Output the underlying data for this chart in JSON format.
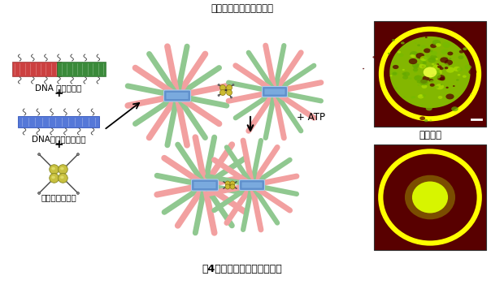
{
  "title": "围4　分子人工筋肉の概略围",
  "subtitle": "高次階層化アスター構造",
  "label_dna_tube": "DNA 修飾微小管",
  "label_dna_origami": "DNAオリガミ構造体",
  "label_kinesin": "キネシン四量体",
  "label_contraction": "収縮運動",
  "label_atp": "+ ATP",
  "bg_color": "#ffffff",
  "pink": "#F2A0A0",
  "green_mt": "#90C890",
  "blue_center": "#6090CC",
  "blue_center2": "#7AAADE",
  "kinesin_yellow": "#C8B840",
  "dark_red_bg": "#5a0000"
}
